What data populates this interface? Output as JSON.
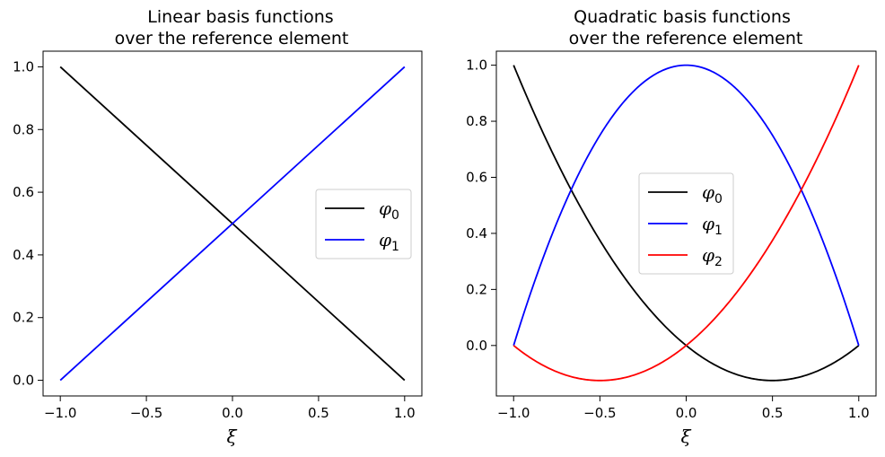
{
  "chart_data": [
    {
      "type": "line",
      "title": [
        "Linear basis functions",
        "over the reference element"
      ],
      "xlabel": "ξ",
      "ylabel": "",
      "xlim": [
        -1.1,
        1.1
      ],
      "ylim": [
        -0.05,
        1.05
      ],
      "xticks": [
        -1.0,
        -0.5,
        0.0,
        0.5,
        1.0
      ],
      "xtick_labels": [
        "−1.0",
        "−0.5",
        "0.0",
        "0.5",
        "1.0"
      ],
      "yticks": [
        0.0,
        0.2,
        0.4,
        0.6,
        0.8,
        1.0
      ],
      "ytick_labels": [
        "0.0",
        "0.2",
        "0.4",
        "0.6",
        "0.8",
        "1.0"
      ],
      "grid": false,
      "legend_position": "center-right",
      "series": [
        {
          "name": "φ",
          "sub": "0",
          "color": "#000000",
          "x": [
            -1.0,
            1.0
          ],
          "y": [
            1.0,
            0.0
          ]
        },
        {
          "name": "φ",
          "sub": "1",
          "color": "#0000ff",
          "x": [
            -1.0,
            1.0
          ],
          "y": [
            0.0,
            1.0
          ]
        }
      ]
    },
    {
      "type": "line",
      "title": [
        "Quadratic basis functions",
        "over the reference element"
      ],
      "xlabel": "ξ",
      "ylabel": "",
      "xlim": [
        -1.1,
        1.1
      ],
      "ylim": [
        -0.18,
        1.05
      ],
      "xticks": [
        -1.0,
        -0.5,
        0.0,
        0.5,
        1.0
      ],
      "xtick_labels": [
        "−1.0",
        "−0.5",
        "0.0",
        "0.5",
        "1.0"
      ],
      "yticks": [
        0.0,
        0.2,
        0.4,
        0.6,
        0.8,
        1.0
      ],
      "ytick_labels": [
        "0.0",
        "0.2",
        "0.4",
        "0.6",
        "0.8",
        "1.0"
      ],
      "grid": false,
      "legend_position": "center",
      "series": [
        {
          "name": "φ",
          "sub": "0",
          "color": "#000000",
          "x": [
            -1.0,
            -0.75,
            -0.5,
            -0.25,
            0.0,
            0.25,
            0.5,
            0.75,
            1.0
          ],
          "y": [
            1.0,
            0.65625,
            0.375,
            0.15625,
            0.0,
            -0.09375,
            -0.125,
            -0.09375,
            0.0
          ]
        },
        {
          "name": "φ",
          "sub": "1",
          "color": "#0000ff",
          "x": [
            -1.0,
            -0.75,
            -0.5,
            -0.25,
            0.0,
            0.25,
            0.5,
            0.75,
            1.0
          ],
          "y": [
            0.0,
            0.4375,
            0.75,
            0.9375,
            1.0,
            0.9375,
            0.75,
            0.4375,
            0.0
          ]
        },
        {
          "name": "φ",
          "sub": "2",
          "color": "#ff0000",
          "x": [
            -1.0,
            -0.75,
            -0.5,
            -0.25,
            0.0,
            0.25,
            0.5,
            0.75,
            1.0
          ],
          "y": [
            0.0,
            -0.09375,
            -0.125,
            -0.09375,
            0.0,
            0.15625,
            0.375,
            0.65625,
            1.0
          ]
        }
      ]
    }
  ]
}
